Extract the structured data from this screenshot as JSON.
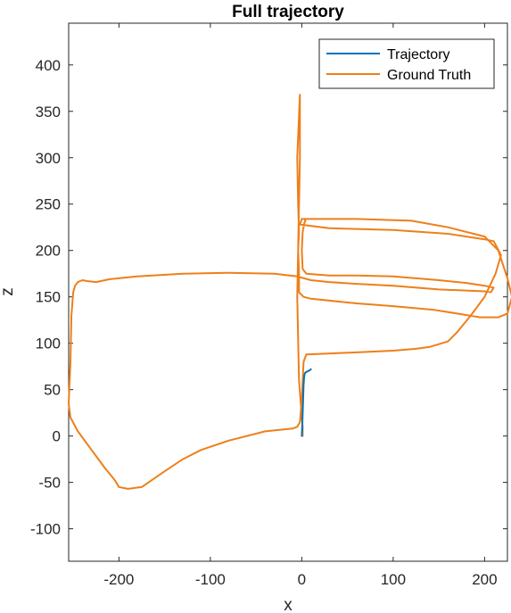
{
  "chart_data": {
    "type": "line",
    "title": "Full trajectory",
    "xlabel": "x",
    "ylabel": "z",
    "xlim": [
      -255,
      225
    ],
    "ylim": [
      -135,
      445
    ],
    "xticks": [
      -200,
      -100,
      0,
      100,
      200
    ],
    "yticks": [
      -100,
      -50,
      0,
      50,
      100,
      150,
      200,
      250,
      300,
      350,
      400
    ],
    "grid": false,
    "legend_position": "top-right",
    "series": [
      {
        "name": "Trajectory",
        "color": "#0072BD",
        "x": [
          0,
          0.5,
          1.0,
          1.5,
          2.0,
          2.5,
          3.0,
          3.5,
          5,
          7,
          9,
          10
        ],
        "y": [
          0,
          10,
          25,
          40,
          55,
          62,
          66,
          68,
          69,
          70,
          71,
          72
        ]
      },
      {
        "name": "Ground Truth",
        "color": "#EE7F1A",
        "x": [
          1,
          1,
          0,
          -3,
          -5,
          -3,
          -2,
          -2,
          -2,
          -2,
          -5,
          -4,
          -3,
          -4,
          -3,
          -3,
          2,
          10,
          60,
          100,
          145,
          170,
          195,
          215,
          225,
          230,
          225,
          215,
          200,
          160,
          120,
          60,
          20,
          0,
          -2,
          30,
          100,
          160,
          200,
          210,
          218,
          212,
          200,
          185,
          170,
          160,
          140,
          125,
          100,
          55,
          5,
          2,
          0,
          -2,
          -5,
          -10,
          -40,
          -80,
          -110,
          -130,
          -150,
          -175,
          -190,
          -200,
          -205,
          -215,
          -230,
          -245,
          -253,
          -255,
          -253,
          -252,
          -250,
          -248,
          -245,
          -240,
          -235,
          -225,
          -210,
          -180,
          -130,
          -80,
          -30,
          -5,
          10,
          30,
          60,
          100,
          150,
          200,
          207,
          210,
          200,
          180,
          150,
          100,
          60,
          30,
          5,
          1,
          0,
          1,
          3,
          4,
          3,
          1
        ],
        "y": [
          0,
          10,
          20,
          60,
          150,
          250,
          300,
          335,
          350,
          368,
          300,
          250,
          220,
          200,
          175,
          155,
          150,
          148,
          143,
          140,
          136,
          132,
          128,
          128,
          132,
          150,
          170,
          200,
          215,
          225,
          232,
          234,
          234,
          234,
          228,
          224,
          222,
          218,
          212,
          210,
          195,
          175,
          150,
          130,
          112,
          102,
          96,
          94,
          92,
          90,
          88,
          80,
          40,
          15,
          10,
          8,
          5,
          -5,
          -15,
          -25,
          -38,
          -55,
          -57,
          -55,
          -47,
          -35,
          -15,
          5,
          20,
          35,
          80,
          130,
          155,
          162,
          166,
          168,
          167,
          166,
          169,
          172,
          175,
          176,
          175,
          172,
          168,
          166,
          164,
          162,
          158,
          156,
          155,
          160,
          162,
          165,
          168,
          172,
          173,
          173,
          175,
          180,
          200,
          220,
          230,
          232,
          234,
          234
        ]
      }
    ]
  }
}
